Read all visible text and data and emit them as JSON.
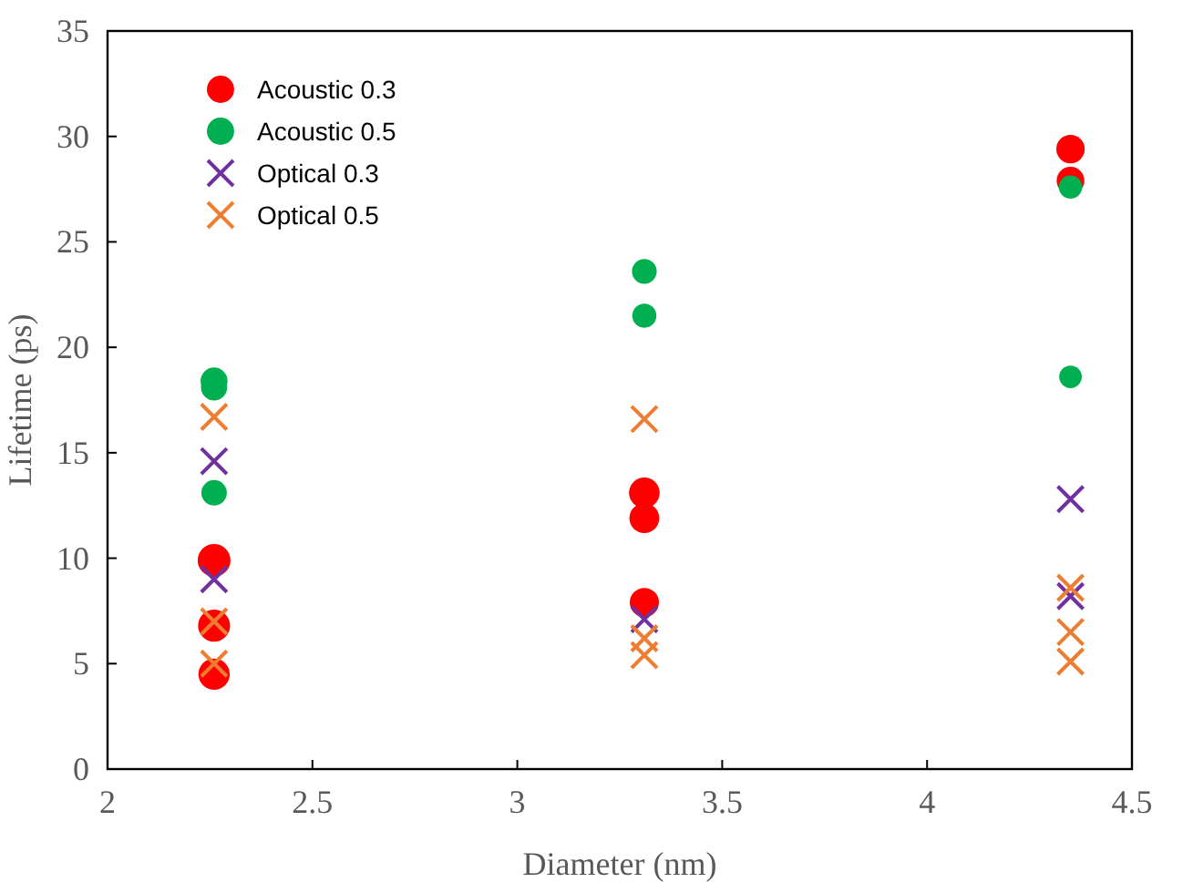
{
  "chart_data": {
    "type": "scatter",
    "xlabel": "Diameter (nm)",
    "ylabel": "Lifetime (ps)",
    "xlim": [
      2,
      4.5
    ],
    "xticks": [
      2,
      2.5,
      3,
      3.5,
      4,
      4.5
    ],
    "ylim": [
      0,
      35
    ],
    "yticks": [
      0,
      5,
      10,
      15,
      20,
      25,
      30,
      35
    ],
    "grid": false,
    "legend": "top left",
    "series": [
      {
        "name": "Acoustic 0.3",
        "color": "#ff0000",
        "marker": "circle",
        "x": [
          2.26,
          2.26,
          2.26,
          3.31,
          3.31,
          3.31,
          4.35,
          4.35
        ],
        "values": [
          9.9,
          6.8,
          4.5,
          13.1,
          11.9,
          7.9,
          29.4,
          27.9
        ]
      },
      {
        "name": "Acoustic 0.5",
        "color": "#00b050",
        "marker": "circle",
        "x": [
          2.26,
          2.26,
          2.26,
          3.31,
          3.31,
          4.35,
          4.35
        ],
        "values": [
          18.4,
          18.1,
          13.1,
          23.6,
          21.5,
          27.6,
          18.6
        ]
      },
      {
        "name": "Optical 0.3",
        "color": "#7030a0",
        "marker": "cross",
        "x": [
          2.26,
          2.26,
          3.31,
          4.35,
          4.35
        ],
        "values": [
          14.6,
          9.0,
          7.1,
          12.8,
          8.2
        ]
      },
      {
        "name": "Optical 0.5",
        "color": "#ed7d31",
        "marker": "cross",
        "x": [
          2.26,
          2.26,
          2.26,
          3.31,
          3.31,
          3.31,
          4.35,
          4.35,
          4.35
        ],
        "values": [
          16.7,
          7.0,
          5.0,
          16.6,
          6.2,
          5.4,
          8.6,
          6.5,
          5.1
        ]
      }
    ]
  }
}
